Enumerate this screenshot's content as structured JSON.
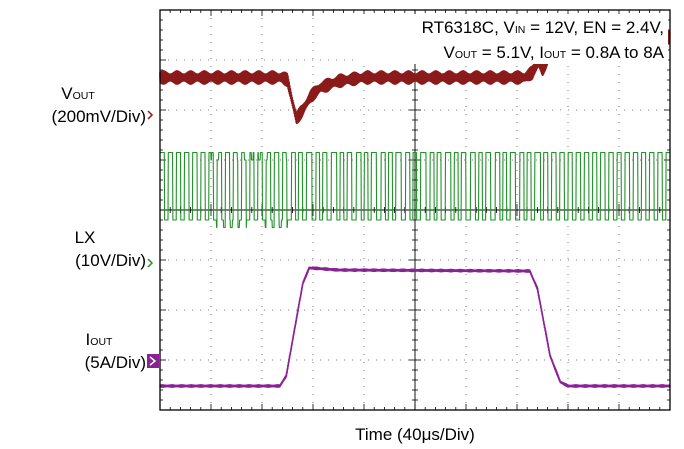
{
  "chart_data": {
    "type": "line",
    "annotation": {
      "line1": {
        "p1": "RT6318C, V",
        "s1": "IN",
        "p2": " = 12V, EN = 2.4V,"
      },
      "line2": {
        "p1": "V",
        "s1": "OUT",
        "p2": " = 5.1V, I",
        "s2": "OUT",
        "p3": " = 0.8A to 8A"
      }
    },
    "xlabel": {
      "p1": "Time (40",
      "mu": "μ",
      "p2": "s/Div)"
    },
    "x_divisions": 10,
    "y_divisions": 8,
    "grid": true,
    "series": [
      {
        "name": {
          "main": "V",
          "sub": "OUT"
        },
        "scale": "(200mV/Div)",
        "color": "#8b1a1a",
        "ground_div": 6.65,
        "x": [
          0,
          4.8,
          5.0,
          5.15,
          5.35,
          5.6,
          5.9,
          6.3,
          7.0,
          8.0,
          9.0,
          10.0,
          11.0,
          14.3,
          14.6,
          14.85,
          15.0,
          15.3,
          15.6,
          16.2,
          17.0,
          18.0,
          20.0
        ],
        "values": [
          0,
          0,
          -0.05,
          -0.4,
          -0.82,
          -0.65,
          -0.38,
          -0.2,
          -0.07,
          0,
          0,
          0,
          0,
          0,
          0.1,
          0.3,
          0.15,
          0.5,
          0.78,
          0.85,
          0.8,
          0.8,
          0.8
        ],
        "ripple_div": 0.26,
        "ripple_period_div": 0.085
      },
      {
        "name": {
          "main": "LX",
          "sub": ""
        },
        "scale": "(10V/Div)",
        "color": "#22922a",
        "ground_div": 3.8,
        "x": [
          0,
          20
        ],
        "values": [
          0,
          0
        ],
        "switching_high_div": 1.35,
        "switching_period_div": 0.16
      },
      {
        "name": {
          "main": "I",
          "sub": "OUT"
        },
        "scale": "(5A/Div)",
        "color": "#8a2296",
        "ground_div": 0.48,
        "x": [
          0,
          4.7,
          4.95,
          5.3,
          5.6,
          5.85,
          6.2,
          7.0,
          14.5,
          14.8,
          15.3,
          15.7,
          16.0,
          20.0
        ],
        "values": [
          0,
          0,
          0.2,
          1.2,
          2.05,
          2.36,
          2.35,
          2.32,
          2.3,
          1.95,
          0.6,
          0.08,
          0,
          0
        ],
        "ripple_div": 0.04
      }
    ]
  }
}
